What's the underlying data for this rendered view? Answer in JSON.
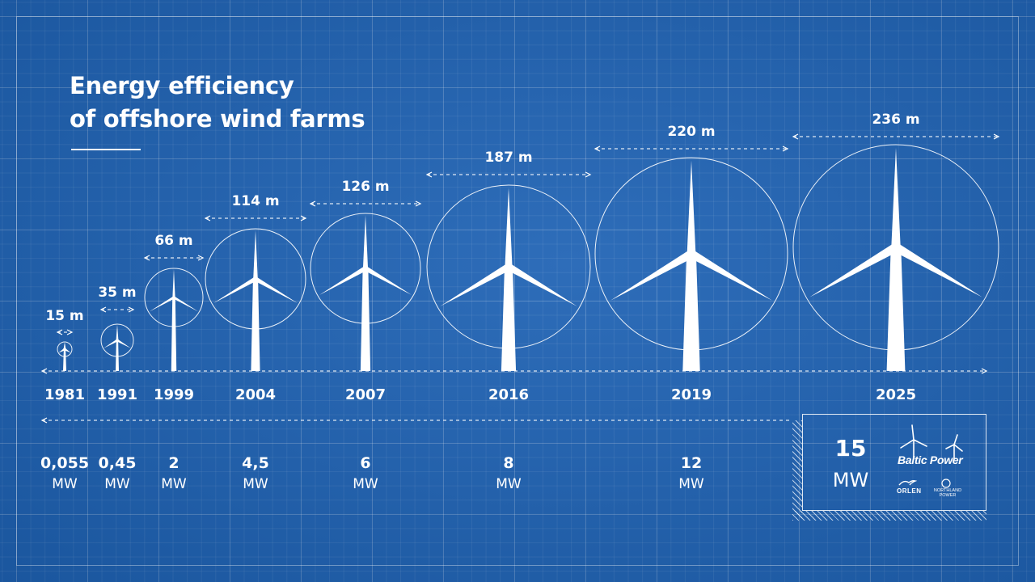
{
  "title": {
    "line1": "Energy efficiency",
    "line2": "of offshore wind farms"
  },
  "timeline": [
    {
      "year": "1981",
      "rotor": "15 m",
      "power": "0,055",
      "unit": "MW"
    },
    {
      "year": "1991",
      "rotor": "35 m",
      "power": "0,45",
      "unit": "MW"
    },
    {
      "year": "1999",
      "rotor": "66 m",
      "power": "2",
      "unit": "MW"
    },
    {
      "year": "2004",
      "rotor": "114 m",
      "power": "4,5",
      "unit": "MW"
    },
    {
      "year": "2007",
      "rotor": "126 m",
      "power": "6",
      "unit": "MW"
    },
    {
      "year": "2016",
      "rotor": "187 m",
      "power": "8",
      "unit": "MW"
    },
    {
      "year": "2019",
      "rotor": "220 m",
      "power": "12",
      "unit": "MW"
    },
    {
      "year": "2025",
      "rotor": "236 m",
      "power": "15",
      "unit": "MW"
    }
  ],
  "highlight": {
    "power": "15",
    "unit": "MW"
  },
  "logos": {
    "baltic_power": "Baltic Power",
    "orlen": "ORLEN",
    "northland": "NORTHLAND POWER"
  },
  "colors": {
    "background": "#1e62b4",
    "lines": "#ffffff"
  }
}
